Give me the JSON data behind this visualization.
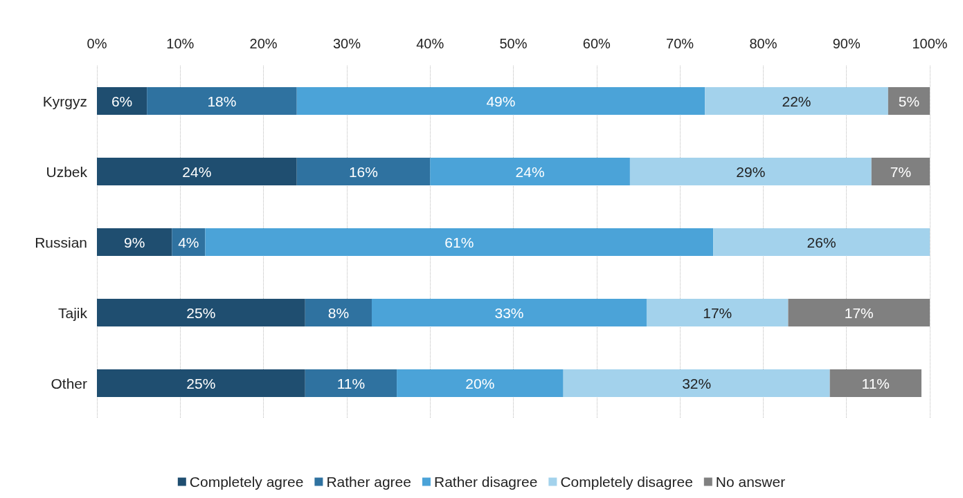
{
  "chart_data": {
    "type": "bar",
    "orientation": "horizontal",
    "stacked": true,
    "categories": [
      "Kyrgyz",
      "Uzbek",
      "Russian",
      "Tajik",
      "Other"
    ],
    "series": [
      {
        "name": "Completely agree",
        "color": "#1f4e70",
        "values": [
          6,
          24,
          9,
          25,
          25
        ],
        "value_labels": [
          "6%",
          "24%",
          "9%",
          "25%",
          "25%"
        ]
      },
      {
        "name": "Rather agree",
        "color": "#2f72a0",
        "values": [
          18,
          16,
          4,
          8,
          11
        ],
        "value_labels": [
          "18%",
          "16%",
          "4%",
          "8%",
          "11%"
        ]
      },
      {
        "name": "Rather disagree",
        "color": "#4ba3d8",
        "values": [
          49,
          24,
          61,
          33,
          20
        ],
        "value_labels": [
          "49%",
          "24%",
          "61%",
          "33%",
          "20%"
        ]
      },
      {
        "name": "Completely disagree",
        "color": "#a3d2ec",
        "values": [
          22,
          29,
          26,
          17,
          32
        ],
        "value_labels": [
          "22%",
          "29%",
          "26%",
          "17%",
          "32%"
        ]
      },
      {
        "name": "No answer",
        "color": "#808080",
        "values": [
          5,
          7,
          null,
          17,
          11
        ],
        "value_labels": [
          "5%",
          "7%",
          null,
          "17%",
          "11%"
        ]
      }
    ],
    "xlim": [
      0,
      100
    ],
    "xticks": [
      {
        "value": 0,
        "label": "0%"
      },
      {
        "value": 10,
        "label": "10%"
      },
      {
        "value": 20,
        "label": "20%"
      },
      {
        "value": 30,
        "label": "30%"
      },
      {
        "value": 40,
        "label": "40%"
      },
      {
        "value": 50,
        "label": "50%"
      },
      {
        "value": 60,
        "label": "60%"
      },
      {
        "value": 70,
        "label": "70%"
      },
      {
        "value": 80,
        "label": "80%"
      },
      {
        "value": 90,
        "label": "90%"
      },
      {
        "value": 100,
        "label": "100%"
      }
    ],
    "grid": "x",
    "legend": "bottom"
  }
}
